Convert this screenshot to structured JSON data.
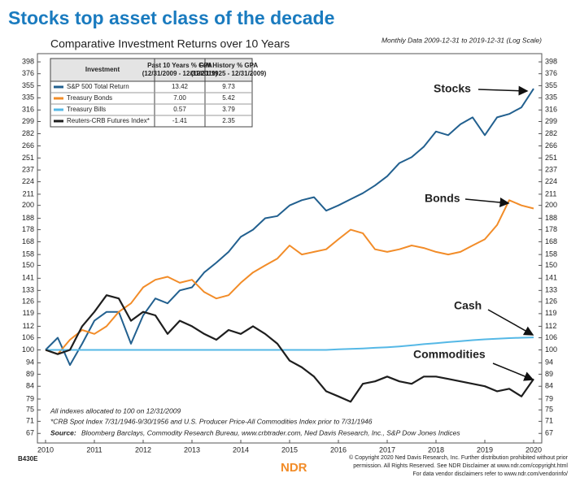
{
  "chart_data": {
    "type": "line",
    "title": "Stocks top asset class of the decade",
    "subtitle": "Comparative Investment Returns over 10 Years",
    "date_note": "Monthly Data 2009-12-31 to 2019-12-31 (Log Scale)",
    "log_scale": true,
    "x": [
      2010,
      2010.25,
      2010.5,
      2010.75,
      2011,
      2011.25,
      2011.5,
      2011.75,
      2012,
      2012.25,
      2012.5,
      2012.75,
      2013,
      2013.25,
      2013.5,
      2013.75,
      2014,
      2014.25,
      2014.5,
      2014.75,
      2015,
      2015.25,
      2015.5,
      2015.75,
      2016,
      2016.25,
      2016.5,
      2016.75,
      2017,
      2017.25,
      2017.5,
      2017.75,
      2018,
      2018.25,
      2018.5,
      2018.75,
      2019,
      2019.25,
      2019.5,
      2019.75,
      2020
    ],
    "xlim": [
      2010,
      2020
    ],
    "xticks": [
      2010,
      2011,
      2012,
      2013,
      2014,
      2015,
      2016,
      2017,
      2018,
      2019,
      2020
    ],
    "ylim": [
      64,
      414
    ],
    "yticks": [
      67,
      71,
      75,
      79,
      84,
      89,
      94,
      100,
      106,
      112,
      119,
      126,
      133,
      141,
      150,
      158,
      168,
      178,
      188,
      200,
      211,
      224,
      237,
      251,
      266,
      282,
      299,
      316,
      335,
      355,
      376,
      398
    ],
    "table_headers": [
      [
        "Investment"
      ],
      [
        "Past 10 Years % GPA",
        "(12/31/2009 - 12/31/2019)"
      ],
      [
        "Full History % GPA",
        "(12/31/1925 - 12/31/2009)"
      ]
    ],
    "series": [
      {
        "name": "S&P 500 Total Return",
        "color": "#22608f",
        "gpa_10y": "13.42",
        "gpa_full": "9.73",
        "values": [
          100,
          106,
          93,
          103,
          115,
          120,
          120,
          103,
          118,
          128,
          125,
          133,
          135,
          145,
          152,
          160,
          172,
          178,
          188,
          190,
          200,
          205,
          208,
          195,
          200,
          206,
          212,
          220,
          230,
          245,
          252,
          265,
          285,
          280,
          295,
          305,
          280,
          305,
          310,
          320,
          350
        ]
      },
      {
        "name": "Treasury Bonds",
        "color": "#f28c28",
        "gpa_10y": "7.00",
        "gpa_full": "5.42",
        "values": [
          100,
          98,
          105,
          110,
          108,
          112,
          120,
          125,
          135,
          140,
          142,
          138,
          140,
          132,
          128,
          130,
          138,
          145,
          150,
          155,
          165,
          158,
          160,
          162,
          170,
          178,
          175,
          162,
          160,
          162,
          165,
          163,
          160,
          158,
          160,
          165,
          170,
          182,
          205,
          200,
          197
        ]
      },
      {
        "name": "Treasury Bills",
        "color": "#55b8e6",
        "gpa_10y": "0.57",
        "gpa_full": "3.79",
        "values": [
          100,
          100,
          100,
          100,
          100,
          100,
          100,
          100,
          100,
          100,
          100,
          100,
          100,
          100,
          100,
          100,
          100,
          100,
          100,
          100,
          100,
          100,
          100,
          100,
          100.3,
          100.5,
          100.7,
          101,
          101.3,
          101.7,
          102.2,
          102.8,
          103.3,
          103.8,
          104.3,
          104.8,
          105.2,
          105.5,
          105.8,
          106,
          106.2
        ]
      },
      {
        "name": "Reuters-CRB Futures Index*",
        "color": "#1e1e1e",
        "gpa_10y": "-1.41",
        "gpa_full": "2.35",
        "values": [
          100,
          98,
          100,
          112,
          120,
          130,
          128,
          115,
          120,
          118,
          108,
          115,
          112,
          108,
          105,
          110,
          108,
          112,
          108,
          103,
          95,
          92,
          88,
          82,
          80,
          78,
          85,
          86,
          88,
          86,
          85,
          88,
          88,
          87,
          86,
          85,
          84,
          82,
          83,
          80,
          87
        ]
      }
    ],
    "annotations": [
      "Stocks",
      "Bonds",
      "Cash",
      "Commodities"
    ],
    "notes": [
      "All indexes allocated to 100 on 12/31/2009",
      "*CRB Spot Index 7/31/1946-9/30/1956 and U.S. Producer Price-All Commodities Index prior to 7/31/1946"
    ],
    "source_label": "Source:",
    "source": "Bloomberg Barclays, Commodity Research Bureau, www.crbtrader.com, Ned Davis Research, Inc., S&P Dow Jones Indices",
    "chart_code": "B430E",
    "logo": "NDR",
    "copyright": [
      "© Copyright 2020 Ned Davis Research, Inc. Further distribution prohibited without prior",
      "permission. All Rights Reserved. See NDR Disclaimer at www.ndr.com/copyright.html",
      "For data vendor disclaimers refer to www.ndr.com/vendorinfo/"
    ]
  }
}
